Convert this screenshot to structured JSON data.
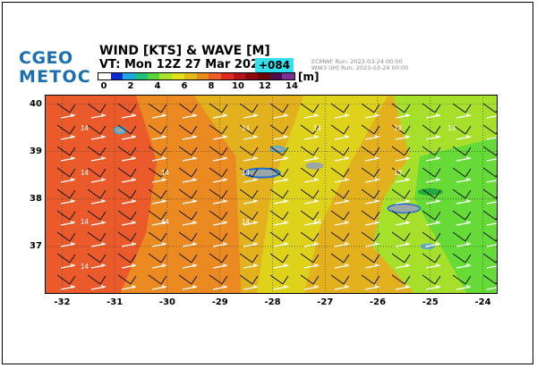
{
  "logo": {
    "line1": "CGEO",
    "line2": "METOC"
  },
  "header": {
    "title": "WIND [KTS] & WAVE [M]",
    "valid_time": "VT: Mon 12Z 27 Mar 2023",
    "lead_time": "+084",
    "run_info": [
      "ECMWF    Run: 2023-03-24 00:00",
      "WW3 (IH) Run: 2023-03-24 00:00"
    ]
  },
  "colorbar": {
    "unit": "[m]",
    "ticks": [
      "0",
      "2",
      "4",
      "6",
      "8",
      "10",
      "12",
      "14"
    ],
    "colors": [
      "#ffffff",
      "#0b2ad1",
      "#1fa7e8",
      "#1ec07a",
      "#59d43c",
      "#a7e42a",
      "#e6e01c",
      "#e3b91b",
      "#e98d1a",
      "#ea5f25",
      "#e02a21",
      "#b5161b",
      "#8d0a0a",
      "#6b0404",
      "#4f0c4d",
      "#7a3392"
    ]
  },
  "map": {
    "lon_ticks": [
      "-32",
      "-31",
      "-30",
      "-29",
      "-28",
      "-27",
      "-26",
      "-25",
      "-24"
    ],
    "lat_ticks": [
      "40",
      "39",
      "38",
      "37"
    ],
    "wave_height_label": "14",
    "wave_height_label_east": "13",
    "colors": {
      "red": "#ea5a2a",
      "orange": "#ec8a22",
      "amber": "#e3b11e",
      "yellow": "#dfd21a",
      "lime": "#a7e02a",
      "green": "#66da36"
    }
  }
}
